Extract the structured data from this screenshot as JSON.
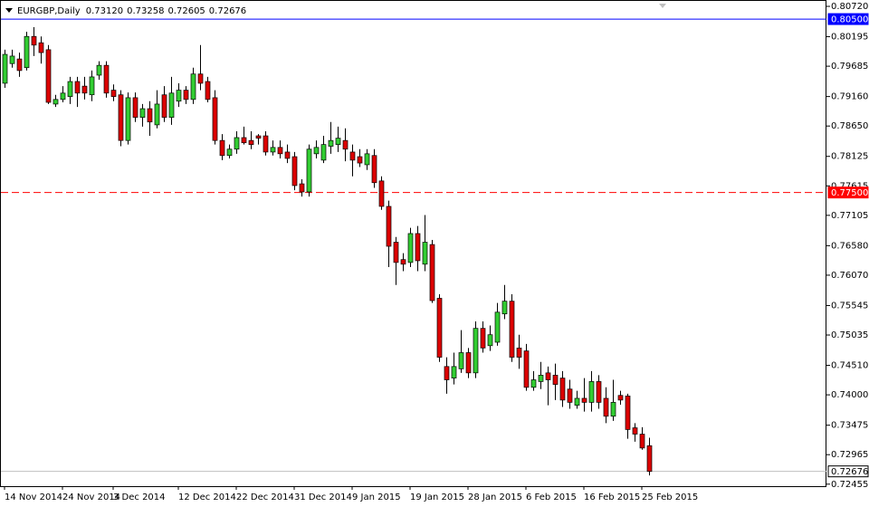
{
  "chart_data": {
    "type": "candlestick",
    "title": "EURGBP,Daily",
    "header_labels": [
      "0.73120",
      "0.73258",
      "0.72605",
      "0.72676"
    ],
    "up_color": "#32cd32",
    "down_color": "#dc0000",
    "categories": [
      "14 Nov 2014",
      null,
      null,
      null,
      null,
      null,
      null,
      null,
      "24 Nov 2014",
      null,
      null,
      null,
      null,
      null,
      null,
      "3 Dec 2014",
      null,
      null,
      null,
      null,
      null,
      null,
      null,
      null,
      "12 Dec 2014",
      null,
      null,
      null,
      null,
      null,
      null,
      null,
      "22 Dec 2014",
      null,
      null,
      null,
      null,
      null,
      null,
      null,
      "31 Dec 2014",
      null,
      null,
      null,
      null,
      null,
      null,
      null,
      "9 Jan 2015",
      null,
      null,
      null,
      null,
      null,
      null,
      null,
      "19 Jan 2015",
      null,
      null,
      null,
      null,
      null,
      null,
      null,
      "28 Jan 2015",
      null,
      null,
      null,
      null,
      null,
      null,
      null,
      "6 Feb 2015",
      null,
      null,
      null,
      null,
      null,
      null,
      null,
      "16 Feb 2015",
      null,
      null,
      null,
      null,
      null,
      null,
      null,
      "25 Feb 2015",
      null
    ],
    "open": [
      0.7939,
      0.7973,
      0.7981,
      0.7966,
      0.802,
      0.8009,
      0.7997,
      0.7903,
      0.7911,
      0.7916,
      0.7942,
      0.7934,
      0.7919,
      0.7953,
      0.797,
      0.7927,
      0.7919,
      0.784,
      0.7914,
      0.788,
      0.7895,
      0.7867,
      0.7919,
      0.788,
      0.7908,
      0.7927,
      0.7911,
      0.7955,
      0.7942,
      0.7914,
      0.784,
      0.7814,
      0.7825,
      0.7845,
      0.784,
      0.7848,
      0.7848,
      0.782,
      0.7828,
      0.782,
      0.7812,
      0.7765,
      0.7751,
      0.7817,
      0.7806,
      0.783,
      0.7833,
      0.784,
      0.782,
      0.7812,
      0.7798,
      0.7814,
      0.777,
      0.7726,
      0.7664,
      0.7634,
      0.7629,
      0.7679,
      0.7626,
      0.766,
      0.7567,
      0.7449,
      0.7429,
      0.7445,
      0.7473,
      0.7438,
      0.7515,
      0.7485,
      0.7491,
      0.754,
      0.7562,
      0.7481,
      0.7476,
      0.7413,
      0.7423,
      0.7438,
      0.7434,
      0.7429,
      0.741,
      0.7382,
      0.7394,
      0.7387,
      0.7423,
      0.7394,
      0.7363,
      0.7399,
      0.7398,
      0.7343,
      0.7332,
      0.7312
    ],
    "high": [
      0.7997,
      0.7997,
      0.7992,
      0.8028,
      0.8036,
      0.802,
      0.8005,
      0.7919,
      0.7934,
      0.795,
      0.795,
      0.795,
      0.7961,
      0.7977,
      0.7977,
      0.7937,
      0.7927,
      0.7923,
      0.7923,
      0.7903,
      0.7908,
      0.7927,
      0.7934,
      0.795,
      0.7939,
      0.7934,
      0.7966,
      0.8005,
      0.795,
      0.7927,
      0.7851,
      0.7833,
      0.7856,
      0.7864,
      0.7856,
      0.7851,
      0.7856,
      0.784,
      0.784,
      0.7833,
      0.782,
      0.7773,
      0.7833,
      0.784,
      0.7848,
      0.7872,
      0.7864,
      0.7861,
      0.7833,
      0.7825,
      0.7825,
      0.7825,
      0.7778,
      0.7736,
      0.7673,
      0.7645,
      0.7689,
      0.7692,
      0.7711,
      0.7668,
      0.7574,
      0.7465,
      0.7473,
      0.7512,
      0.7481,
      0.7527,
      0.7527,
      0.752,
      0.7559,
      0.759,
      0.7574,
      0.7504,
      0.7488,
      0.7441,
      0.7457,
      0.7449,
      0.7454,
      0.7441,
      0.7426,
      0.7407,
      0.7429,
      0.7441,
      0.7434,
      0.7413,
      0.7426,
      0.7407,
      0.7402,
      0.7351,
      0.7344,
      0.73258
    ],
    "low": [
      0.7931,
      0.7966,
      0.795,
      0.7961,
      0.7986,
      0.7973,
      0.7903,
      0.7898,
      0.7906,
      0.7903,
      0.7898,
      0.7911,
      0.7908,
      0.7945,
      0.7914,
      0.7908,
      0.783,
      0.7833,
      0.7872,
      0.7864,
      0.7848,
      0.7861,
      0.7872,
      0.7867,
      0.7898,
      0.7903,
      0.7903,
      0.7927,
      0.7906,
      0.7833,
      0.7806,
      0.7809,
      0.7817,
      0.7833,
      0.7825,
      0.7833,
      0.7814,
      0.7814,
      0.7809,
      0.7801,
      0.7754,
      0.7743,
      0.7743,
      0.7809,
      0.7801,
      0.7817,
      0.782,
      0.7804,
      0.7778,
      0.7794,
      0.7789,
      0.7758,
      0.772,
      0.7621,
      0.759,
      0.7614,
      0.7621,
      0.7614,
      0.7614,
      0.7559,
      0.7457,
      0.7402,
      0.7418,
      0.7438,
      0.7429,
      0.7429,
      0.7473,
      0.7476,
      0.7485,
      0.7531,
      0.7457,
      0.7445,
      0.7407,
      0.7407,
      0.741,
      0.7382,
      0.7391,
      0.7379,
      0.7376,
      0.7376,
      0.7371,
      0.7371,
      0.7376,
      0.7351,
      0.7355,
      0.7383,
      0.7324,
      0.7319,
      0.7305,
      0.72605
    ],
    "close": [
      0.7989,
      0.7986,
      0.7961,
      0.802,
      0.8005,
      0.7992,
      0.7906,
      0.7911,
      0.7922,
      0.7942,
      0.7922,
      0.7922,
      0.795,
      0.797,
      0.7922,
      0.7916,
      0.784,
      0.7914,
      0.788,
      0.7895,
      0.7872,
      0.7903,
      0.788,
      0.7922,
      0.7927,
      0.7911,
      0.7955,
      0.7939,
      0.7911,
      0.784,
      0.7814,
      0.7825,
      0.7845,
      0.7836,
      0.7833,
      0.7844,
      0.782,
      0.7828,
      0.7817,
      0.7809,
      0.7762,
      0.7751,
      0.7825,
      0.7828,
      0.7833,
      0.784,
      0.7844,
      0.7825,
      0.7806,
      0.7801,
      0.7817,
      0.7767,
      0.7726,
      0.7657,
      0.7629,
      0.7626,
      0.7679,
      0.7632,
      0.7664,
      0.7563,
      0.7465,
      0.7426,
      0.7449,
      0.7473,
      0.7438,
      0.7515,
      0.7481,
      0.7504,
      0.7543,
      0.7562,
      0.7465,
      0.7465,
      0.7413,
      0.7426,
      0.7434,
      0.7426,
      0.7418,
      0.7391,
      0.7387,
      0.7394,
      0.7387,
      0.7423,
      0.7387,
      0.7363,
      0.7387,
      0.7391,
      0.734,
      0.7332,
      0.7308,
      0.72676
    ],
    "ylim": [
      0.7242,
      0.8083
    ],
    "yticks": [
      {
        "value": 0.8072,
        "label": "0.80720"
      },
      0.80195,
      0.79685,
      {
        "value": 0.7916,
        "label": "0.79160"
      },
      {
        "value": 0.7865,
        "label": "0.78650"
      },
      0.78125,
      0.77615,
      0.77105,
      {
        "value": 0.7658,
        "label": "0.76580"
      },
      {
        "value": 0.7607,
        "label": "0.76070"
      },
      0.75545,
      0.75035,
      {
        "value": 0.7451,
        "label": "0.74510"
      },
      {
        "value": 0.74,
        "label": "0.74000"
      },
      0.73475,
      0.72965,
      0.72455
    ],
    "level_lines": [
      {
        "value": 0.805,
        "label": "0.80500",
        "color": "#0000ff",
        "style": "solid"
      },
      {
        "value": 0.775,
        "label": "0.77500",
        "color": "#ff0000",
        "style": "dashed"
      },
      {
        "value": 0.72676,
        "label": "0.72676",
        "color": "#c0c0c0",
        "style": "solid"
      }
    ]
  }
}
